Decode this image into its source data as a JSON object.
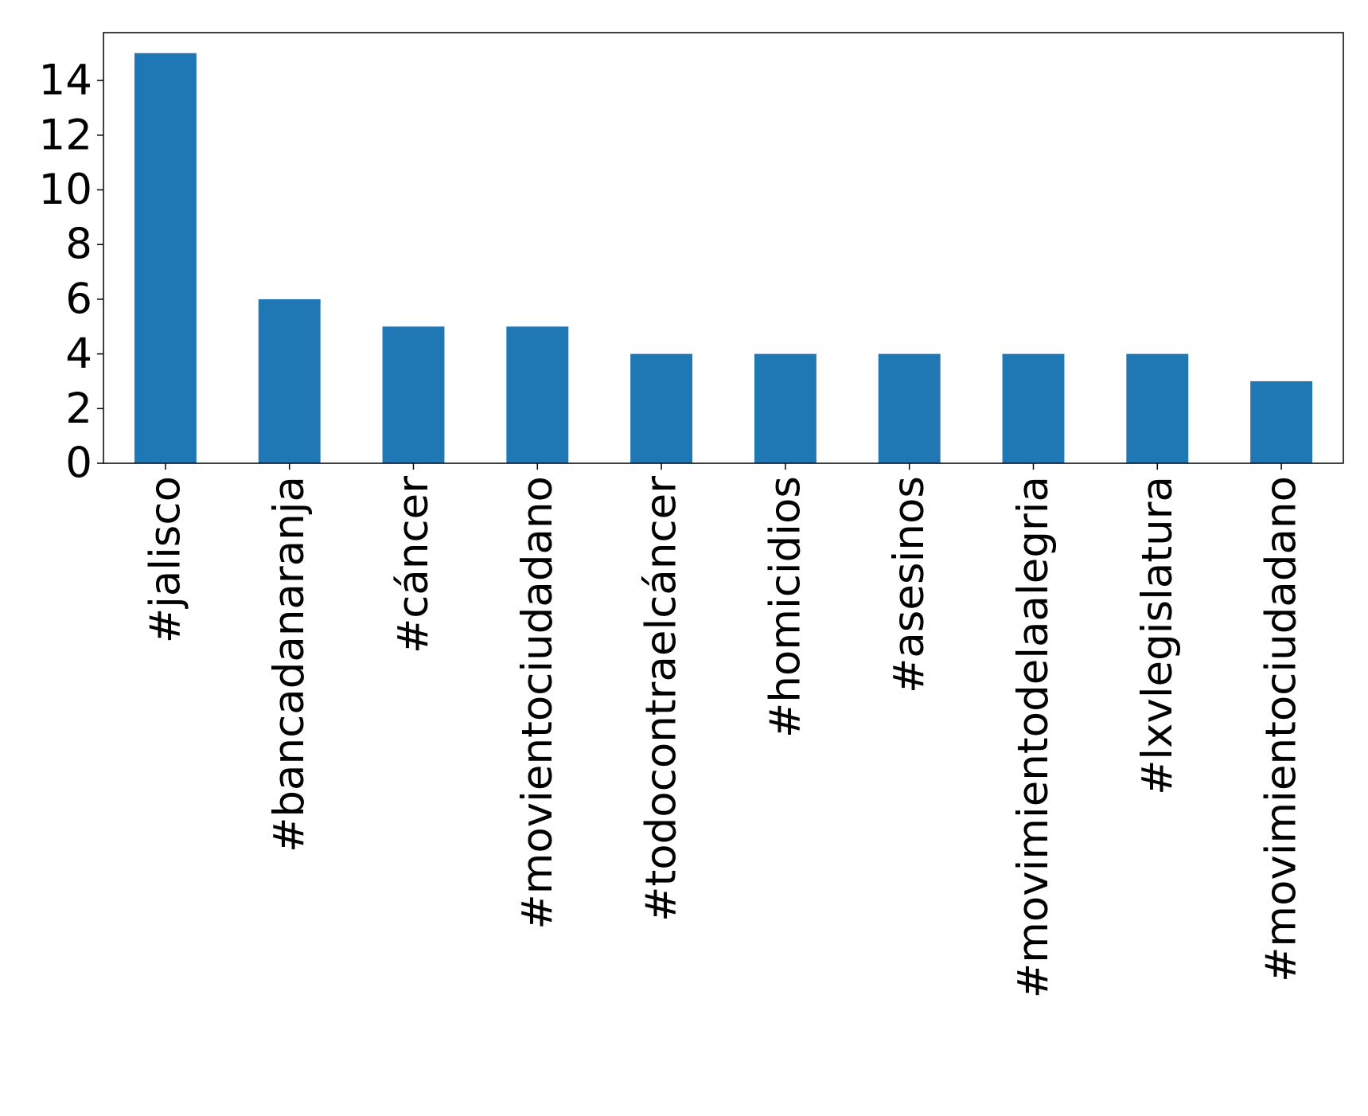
{
  "chart_data": {
    "type": "bar",
    "categories": [
      "#jalisco",
      "#bancadanaranja",
      "#cáncer",
      "#movientociudadano",
      "#todocontraelcáncer",
      "#homicidios",
      "#asesinos",
      "#movimientodelaalegria",
      "#lxvlegislatura",
      "#movimientociudadano"
    ],
    "values": [
      15,
      6,
      5,
      5,
      4,
      4,
      4,
      4,
      4,
      3
    ],
    "color": "#1f77b4",
    "ylim": [
      0,
      15.75
    ],
    "yticks": [
      0,
      2,
      4,
      6,
      8,
      10,
      12,
      14
    ],
    "grid": false
  }
}
